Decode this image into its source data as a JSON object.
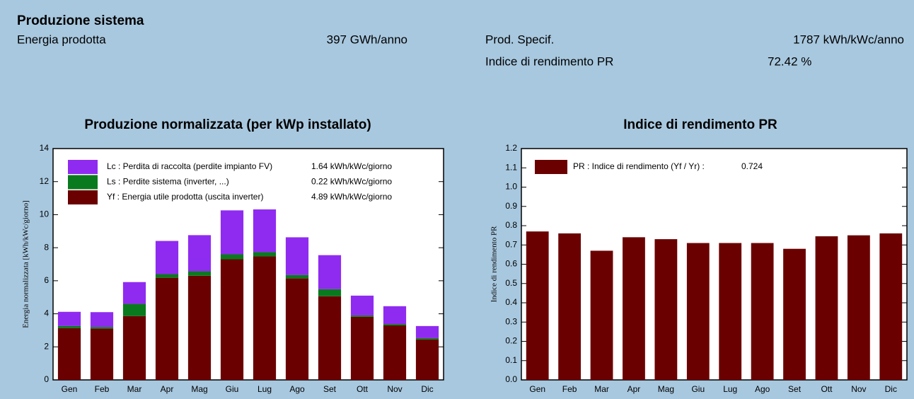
{
  "header": {
    "title": "Produzione sistema",
    "items": [
      {
        "label": "Energia prodotta",
        "value": "397 GWh/anno"
      },
      {
        "label": "Prod. Specif.",
        "value": "1787 kWh/kWc/anno"
      },
      {
        "label": "Indice di rendimento PR",
        "value": "72.42 %"
      }
    ]
  },
  "chart_data": [
    {
      "type": "stacked_bar",
      "title": "Produzione normalizzata (per kWp installato)",
      "y_label": "Energia normalizzata [kWh/kWc/giorno]",
      "categories": [
        "Gen",
        "Feb",
        "Mar",
        "Apr",
        "Mag",
        "Giu",
        "Lug",
        "Ago",
        "Set",
        "Ott",
        "Nov",
        "Dic"
      ],
      "series": [
        {
          "name": "Yf : Energia utile prodotta  (uscita inverter)",
          "legend_value": "4.89 kWh/kWc/giorno",
          "color": "#6b0000",
          "values": [
            3.13,
            3.1,
            3.86,
            6.18,
            6.3,
            7.3,
            7.47,
            6.14,
            5.06,
            3.82,
            3.3,
            2.45
          ]
        },
        {
          "name": "Ls : Perdite sistema  (inverter, ...)",
          "legend_value": "0.22 kWh/kWc/giorno",
          "color": "#0a7a1e",
          "values": [
            0.13,
            0.1,
            0.74,
            0.22,
            0.27,
            0.3,
            0.26,
            0.21,
            0.43,
            0.08,
            0.08,
            0.08
          ]
        },
        {
          "name": "Lc : Perdita di raccolta (perdite impianto FV)",
          "legend_value": "1.64 kWh/kWc/giorno",
          "color": "#8f2bf0",
          "values": [
            0.86,
            0.9,
            1.32,
            2.01,
            2.19,
            2.66,
            2.83,
            2.28,
            2.06,
            1.2,
            1.08,
            0.73
          ]
        }
      ],
      "ylim": [
        0,
        14
      ],
      "yticks": [
        0,
        2,
        4,
        6,
        8,
        10,
        12,
        14
      ]
    },
    {
      "type": "bar",
      "title": "Indice di rendimento PR",
      "y_label": "Indice di rendimento PR",
      "categories": [
        "Gen",
        "Feb",
        "Mar",
        "Apr",
        "Mag",
        "Giu",
        "Lug",
        "Ago",
        "Set",
        "Ott",
        "Nov",
        "Dic"
      ],
      "series": [
        {
          "name": "PR : Indice di rendimento (Yf / Yr) :",
          "legend_value": "0.724",
          "color": "#6b0000",
          "values": [
            0.77,
            0.76,
            0.67,
            0.74,
            0.73,
            0.71,
            0.71,
            0.71,
            0.68,
            0.745,
            0.75,
            0.76
          ]
        }
      ],
      "ylim": [
        0,
        1.2
      ],
      "yticks": [
        {
          "value": 0,
          "label": "0.0"
        },
        0.1,
        0.2,
        0.3,
        0.4,
        0.5,
        0.6,
        0.7,
        0.8,
        0.9,
        {
          "value": 1,
          "label": "1.0"
        },
        1.1,
        1.2
      ]
    }
  ]
}
